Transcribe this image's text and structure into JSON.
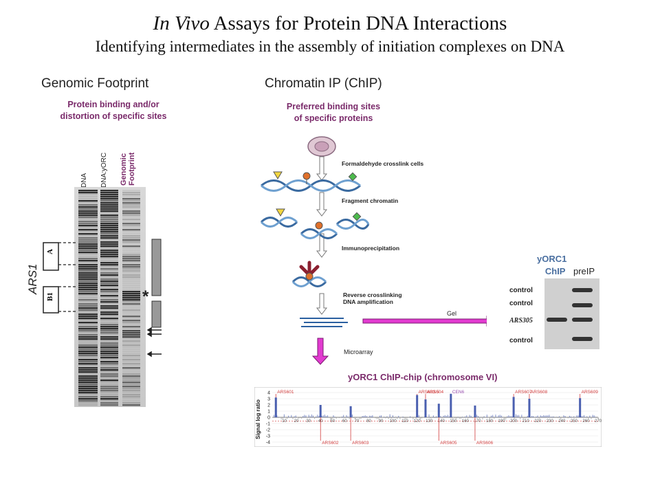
{
  "title": {
    "italic": "In Vivo",
    "rest": " Assays  for Protein DNA Interactions"
  },
  "subtitle": "Identifying intermediates in the assembly of initiation complexes on DNA",
  "left_panel": {
    "heading": "Genomic Footprint",
    "description_line1": "Protein binding and/or",
    "description_line2": "distortion of specific sites",
    "lanes": [
      "DNA",
      "DNA:yORC"
    ],
    "lane3_line1": "Genomic",
    "lane3_line2": "Footprint",
    "region_label": "ARS1",
    "box_a": "A",
    "box_b1": "B1",
    "asterisk": "*"
  },
  "right_panel": {
    "heading": "Chromatin IP (ChIP)",
    "description_line1": "Preferred binding sites",
    "description_line2": "of specific proteins",
    "steps": {
      "crosslink": "Formaldehyde crosslink cells",
      "fragment": "Fragment chromatin",
      "immuno": "Immunoprecipitation",
      "reverse_line1": "Reverse crosslinking",
      "reverse_line2": "DNA amplification",
      "gel": "Gel",
      "microarray": "Microarray"
    },
    "gel_panel": {
      "title_line1": "yORC1",
      "title_line2": "ChIP",
      "preip": "preIP",
      "rows": [
        "control",
        "control",
        "ARS305",
        "control"
      ]
    },
    "chip_chart_title": "yORC1 ChIP-chip (chromosome VI)"
  },
  "chart_data": {
    "type": "bar",
    "title": "yORC1 ChIP-chip (chromosome VI)",
    "ylabel": "Signal log ratio",
    "ylim": [
      -4,
      4
    ],
    "yticks": [
      "4",
      "3",
      "2",
      "1",
      "0",
      "-1",
      "-2",
      "-3",
      "-4"
    ],
    "xticks": [
      "10",
      "20",
      "30",
      "40",
      "50",
      "60",
      "70",
      "80",
      "90",
      "100",
      "110",
      "120",
      "130",
      "140",
      "150",
      "160",
      "170",
      "180",
      "190",
      "200",
      "210",
      "220",
      "230",
      "240",
      "250",
      "260",
      "270"
    ],
    "xlim": [
      0,
      270
    ],
    "peaks": [
      {
        "label": "ARS601",
        "x": 3,
        "y": 3.2,
        "side": "top"
      },
      {
        "label": "ARS602",
        "x": 40,
        "y": 2.0,
        "side": "bottom"
      },
      {
        "label": "ARS603",
        "x": 65,
        "y": 1.8,
        "side": "bottom"
      },
      {
        "label": "ARS603.5",
        "x": 120,
        "y": 3.6,
        "side": "top"
      },
      {
        "label": "ARS604",
        "x": 127,
        "y": 2.9,
        "side": "top"
      },
      {
        "label": "CEN6",
        "x": 148,
        "y": 3.8,
        "side": "top"
      },
      {
        "label": "ARS605",
        "x": 138,
        "y": 2.2,
        "side": "bottom"
      },
      {
        "label": "ARS606",
        "x": 168,
        "y": 1.9,
        "side": "bottom"
      },
      {
        "label": "ARS607",
        "x": 200,
        "y": 3.3,
        "side": "top"
      },
      {
        "label": "ARS608",
        "x": 213,
        "y": 3.0,
        "side": "top"
      },
      {
        "label": "ARS609",
        "x": 255,
        "y": 3.1,
        "side": "top"
      }
    ],
    "colors": {
      "bars": "#4a5fb0",
      "labels": "#d23c3c",
      "cen": "#9a4fb0",
      "threshold": "#d23c3c"
    }
  }
}
